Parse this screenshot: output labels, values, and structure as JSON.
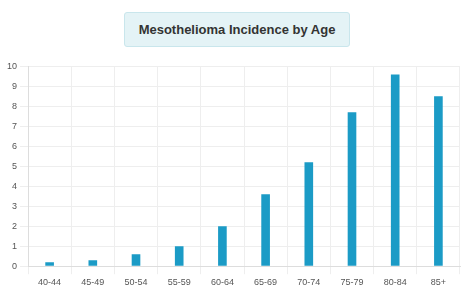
{
  "chart_data": {
    "type": "bar",
    "title": "Mesothelioma Incidence by Age",
    "categories": [
      "40-44",
      "45-49",
      "50-54",
      "55-59",
      "60-64",
      "65-69",
      "70-74",
      "75-79",
      "80-84",
      "85+"
    ],
    "values": [
      0.2,
      0.3,
      0.6,
      1.0,
      2.0,
      3.6,
      5.2,
      7.7,
      9.6,
      8.5
    ],
    "color": "#1b9bc6",
    "ylim": [
      0,
      10
    ],
    "yticks": [
      0,
      1,
      2,
      3,
      4,
      5,
      6,
      7,
      8,
      9,
      10
    ],
    "grid": true
  }
}
